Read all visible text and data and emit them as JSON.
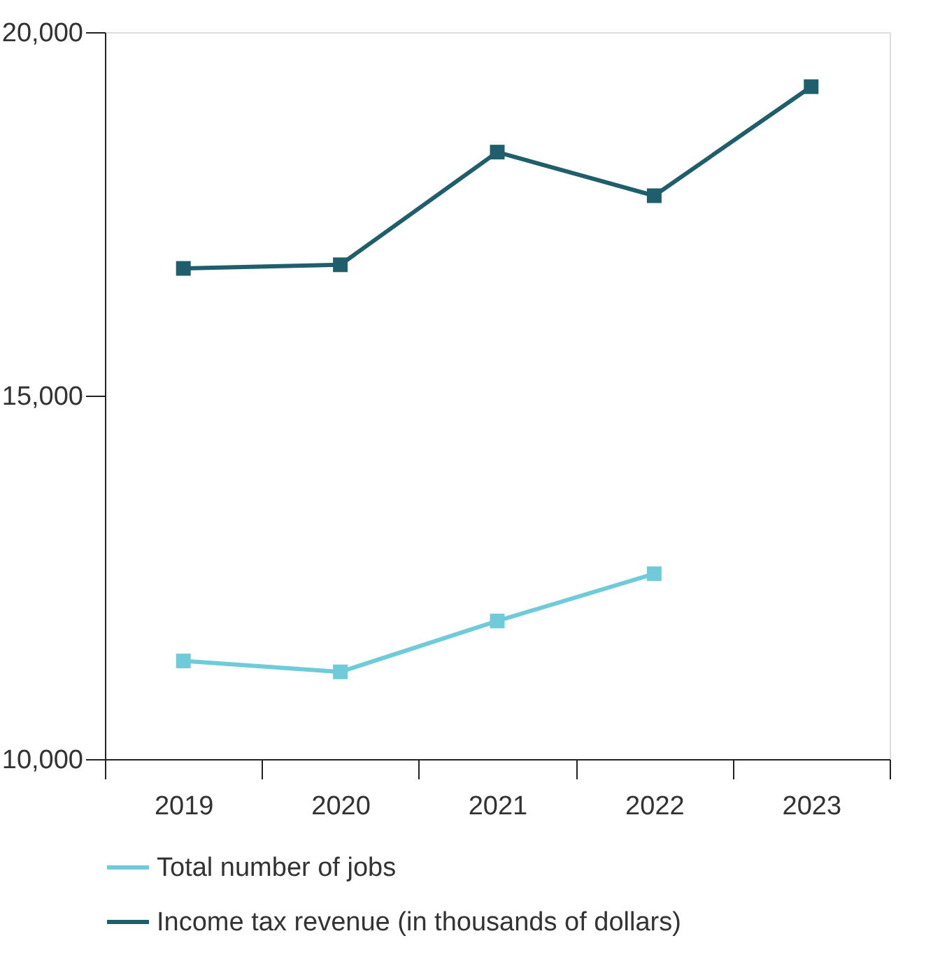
{
  "chart_data": {
    "type": "line",
    "categories": [
      "2019",
      "2020",
      "2021",
      "2022",
      "2023"
    ],
    "series": [
      {
        "name": "Total number of jobs",
        "color": "#6fcbd9",
        "values": [
          11350,
          11200,
          11900,
          12550,
          null
        ]
      },
      {
        "name": "Income tax revenue (in thousands of dollars)",
        "color": "#1e5f6b",
        "values": [
          16750,
          16800,
          18350,
          17750,
          19250
        ]
      }
    ],
    "ylim": [
      10000,
      20000
    ],
    "yticks": [
      {
        "value": 10000,
        "label": "10,000"
      },
      {
        "value": 15000,
        "label": "15,000"
      },
      {
        "value": 20000,
        "label": "20,000"
      }
    ],
    "grid": false,
    "legend": "bottom",
    "marker": "square",
    "line_style": "solid"
  }
}
